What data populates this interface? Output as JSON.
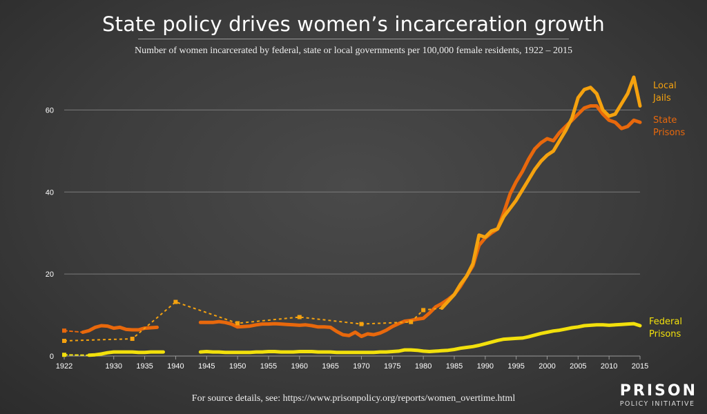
{
  "title": "State policy drives women’s incarceration growth",
  "subtitle": "Number of women incarcerated by federal, state or local governments per 100,000 female residents, 1922 – 2015",
  "source": "For source details, see: https://www.prisonpolicy.org/reports/women_overtime.html",
  "logo": {
    "main": "PRISON",
    "sub": "POLICY INITIATIVE"
  },
  "chart_data": {
    "type": "line",
    "title": "State policy drives women’s incarceration growth",
    "xlabel": "",
    "ylabel": "",
    "xlim": [
      1922,
      2015
    ],
    "ylim": [
      0,
      70
    ],
    "x_ticks": [
      1922,
      1930,
      1935,
      1940,
      1945,
      1950,
      1955,
      1960,
      1965,
      1970,
      1975,
      1980,
      1985,
      1990,
      1995,
      2000,
      2005,
      2010,
      2015
    ],
    "y_ticks": [
      0,
      20,
      40,
      60
    ],
    "grid": true,
    "series": [
      {
        "name": "State Prisons",
        "label_lines": [
          "State",
          "Prisons"
        ],
        "color": "#e8680c",
        "segments": [
          [
            [
              1922,
              6.2
            ],
            [
              1925,
              5.8
            ]
          ],
          [
            [
              1925,
              5.8
            ],
            [
              1926,
              6.2
            ],
            [
              1927,
              7.0
            ],
            [
              1928,
              7.4
            ],
            [
              1929,
              7.3
            ],
            [
              1930,
              6.8
            ],
            [
              1931,
              7.0
            ],
            [
              1932,
              6.5
            ],
            [
              1933,
              6.4
            ],
            [
              1934,
              6.4
            ],
            [
              1935,
              6.8
            ],
            [
              1936,
              6.9
            ],
            [
              1937,
              7.0
            ]
          ],
          [
            [
              1944,
              8.2
            ],
            [
              1945,
              8.2
            ],
            [
              1946,
              8.2
            ],
            [
              1947,
              8.4
            ],
            [
              1948,
              8.2
            ],
            [
              1949,
              7.8
            ],
            [
              1950,
              7.1
            ],
            [
              1951,
              7.2
            ],
            [
              1952,
              7.3
            ],
            [
              1953,
              7.6
            ],
            [
              1954,
              7.8
            ],
            [
              1955,
              7.8
            ],
            [
              1956,
              7.9
            ],
            [
              1957,
              7.8
            ],
            [
              1958,
              7.7
            ],
            [
              1959,
              7.6
            ],
            [
              1960,
              7.5
            ],
            [
              1961,
              7.6
            ],
            [
              1962,
              7.4
            ],
            [
              1963,
              7.1
            ],
            [
              1964,
              7.1
            ],
            [
              1965,
              7.0
            ],
            [
              1966,
              6.0
            ],
            [
              1967,
              5.2
            ],
            [
              1968,
              5.0
            ],
            [
              1969,
              5.8
            ],
            [
              1970,
              4.8
            ],
            [
              1971,
              5.4
            ],
            [
              1972,
              5.2
            ],
            [
              1973,
              5.6
            ],
            [
              1974,
              6.3
            ],
            [
              1975,
              7.2
            ],
            [
              1976,
              7.9
            ],
            [
              1977,
              8.5
            ],
            [
              1978,
              8.7
            ],
            [
              1979,
              9.0
            ],
            [
              1980,
              9.2
            ],
            [
              1981,
              10.5
            ],
            [
              1982,
              12.0
            ],
            [
              1983,
              12.8
            ],
            [
              1984,
              13.8
            ],
            [
              1985,
              15.0
            ],
            [
              1986,
              17.0
            ],
            [
              1987,
              19.5
            ],
            [
              1988,
              22.0
            ],
            [
              1989,
              27.0
            ],
            [
              1990,
              28.8
            ],
            [
              1991,
              30.0
            ],
            [
              1992,
              31.0
            ],
            [
              1993,
              35.0
            ],
            [
              1994,
              39.5
            ],
            [
              1995,
              42.5
            ],
            [
              1996,
              45.0
            ],
            [
              1997,
              48.0
            ],
            [
              1998,
              50.5
            ],
            [
              1999,
              52.0
            ],
            [
              2000,
              53.0
            ],
            [
              2001,
              52.5
            ],
            [
              2002,
              54.5
            ],
            [
              2003,
              56.0
            ],
            [
              2004,
              57.5
            ],
            [
              2005,
              59.0
            ],
            [
              2006,
              60.5
            ],
            [
              2007,
              61.0
            ],
            [
              2008,
              61.0
            ],
            [
              2009,
              59.0
            ],
            [
              2010,
              57.5
            ],
            [
              2011,
              57.0
            ],
            [
              2012,
              55.5
            ],
            [
              2013,
              56.0
            ],
            [
              2014,
              57.5
            ],
            [
              2015,
              57.0
            ]
          ]
        ]
      },
      {
        "name": "Local Jails",
        "label_lines": [
          "Local",
          "Jails"
        ],
        "color": "#f5a20f",
        "points": [
          [
            1922,
            3.7
          ],
          [
            1933,
            4.2
          ],
          [
            1940,
            13.2
          ],
          [
            1950,
            8.0
          ],
          [
            1960,
            9.5
          ],
          [
            1970,
            7.8
          ],
          [
            1978,
            8.3
          ],
          [
            1980,
            11.2
          ],
          [
            1983,
            11.7
          ],
          [
            1985,
            15.0
          ],
          [
            1986,
            17.5
          ],
          [
            1987,
            19.5
          ],
          [
            1988,
            22.5
          ],
          [
            1989,
            29.5
          ],
          [
            1990,
            29.0
          ],
          [
            1991,
            30.5
          ],
          [
            1992,
            31.0
          ],
          [
            1993,
            34.0
          ],
          [
            1994,
            36.0
          ],
          [
            1995,
            38.0
          ],
          [
            1996,
            40.5
          ],
          [
            1997,
            43.0
          ],
          [
            1998,
            45.5
          ],
          [
            1999,
            47.5
          ],
          [
            2000,
            49.0
          ],
          [
            2001,
            50.0
          ],
          [
            2002,
            52.5
          ],
          [
            2003,
            55.0
          ],
          [
            2004,
            58.0
          ],
          [
            2005,
            63.0
          ],
          [
            2006,
            65.0
          ],
          [
            2007,
            65.5
          ],
          [
            2008,
            64.0
          ],
          [
            2009,
            60.0
          ],
          [
            2010,
            58.5
          ],
          [
            2011,
            59.0
          ],
          [
            2012,
            61.5
          ],
          [
            2013,
            64.0
          ],
          [
            2014,
            68.0
          ],
          [
            2015,
            61.0
          ]
        ]
      },
      {
        "name": "Federal Prisons",
        "label_lines": [
          "Federal",
          "Prisons"
        ],
        "color": "#f2e00c",
        "segments": [
          [
            [
              1922,
              0.3
            ],
            [
              1926,
              0.2
            ]
          ],
          [
            [
              1926,
              0.2
            ],
            [
              1927,
              0.3
            ],
            [
              1928,
              0.5
            ],
            [
              1929,
              0.8
            ],
            [
              1930,
              1.0
            ],
            [
              1931,
              1.0
            ],
            [
              1932,
              1.0
            ],
            [
              1933,
              1.0
            ],
            [
              1934,
              0.9
            ],
            [
              1935,
              0.9
            ],
            [
              1936,
              1.0
            ],
            [
              1937,
              1.0
            ],
            [
              1938,
              1.0
            ]
          ],
          [
            [
              1944,
              1.0
            ],
            [
              1945,
              1.1
            ],
            [
              1946,
              1.0
            ],
            [
              1947,
              1.0
            ],
            [
              1948,
              0.9
            ],
            [
              1949,
              0.9
            ],
            [
              1950,
              0.9
            ],
            [
              1951,
              0.9
            ],
            [
              1952,
              0.9
            ],
            [
              1953,
              1.0
            ],
            [
              1954,
              1.0
            ],
            [
              1955,
              1.1
            ],
            [
              1956,
              1.1
            ],
            [
              1957,
              1.0
            ],
            [
              1958,
              1.0
            ],
            [
              1959,
              1.0
            ],
            [
              1960,
              1.1
            ],
            [
              1961,
              1.1
            ],
            [
              1962,
              1.1
            ],
            [
              1963,
              1.0
            ],
            [
              1964,
              1.0
            ],
            [
              1965,
              1.0
            ],
            [
              1966,
              0.9
            ],
            [
              1967,
              0.9
            ],
            [
              1968,
              0.9
            ],
            [
              1969,
              0.9
            ],
            [
              1970,
              0.9
            ],
            [
              1971,
              0.9
            ],
            [
              1972,
              0.9
            ],
            [
              1973,
              1.0
            ],
            [
              1974,
              1.0
            ],
            [
              1975,
              1.1
            ],
            [
              1976,
              1.2
            ],
            [
              1977,
              1.5
            ],
            [
              1978,
              1.5
            ],
            [
              1979,
              1.4
            ],
            [
              1980,
              1.2
            ],
            [
              1981,
              1.1
            ],
            [
              1982,
              1.2
            ],
            [
              1983,
              1.3
            ],
            [
              1984,
              1.4
            ],
            [
              1985,
              1.6
            ],
            [
              1986,
              1.9
            ],
            [
              1987,
              2.1
            ],
            [
              1988,
              2.3
            ],
            [
              1989,
              2.6
            ],
            [
              1990,
              3.0
            ],
            [
              1991,
              3.4
            ],
            [
              1992,
              3.8
            ],
            [
              1993,
              4.1
            ],
            [
              1994,
              4.2
            ],
            [
              1995,
              4.3
            ],
            [
              1996,
              4.4
            ],
            [
              1997,
              4.7
            ],
            [
              1998,
              5.1
            ],
            [
              1999,
              5.5
            ],
            [
              2000,
              5.8
            ],
            [
              2001,
              6.1
            ],
            [
              2002,
              6.3
            ],
            [
              2003,
              6.6
            ],
            [
              2004,
              6.9
            ],
            [
              2005,
              7.1
            ],
            [
              2006,
              7.4
            ],
            [
              2007,
              7.5
            ],
            [
              2008,
              7.6
            ],
            [
              2009,
              7.6
            ],
            [
              2010,
              7.5
            ],
            [
              2011,
              7.6
            ],
            [
              2012,
              7.7
            ],
            [
              2013,
              7.8
            ],
            [
              2014,
              7.9
            ],
            [
              2015,
              7.4
            ]
          ]
        ]
      }
    ]
  }
}
